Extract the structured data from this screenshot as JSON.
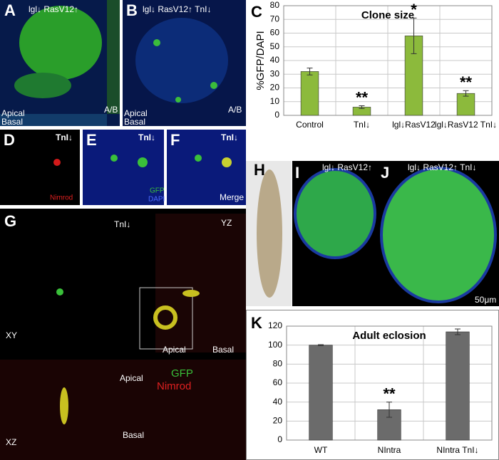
{
  "panels": {
    "A": {
      "label": "A",
      "title": "lgl↓ RasV12↑",
      "apical": "Apical",
      "basal": "Basal",
      "ab": "A/B"
    },
    "B": {
      "label": "B",
      "title": "lgl↓ RasV12↑ TnI↓",
      "apical": "Apical",
      "basal": "Basal",
      "ab": "A/B"
    },
    "C": {
      "label": "C"
    },
    "D": {
      "label": "D",
      "title": "TnI↓",
      "stain": "Nimrod"
    },
    "E": {
      "label": "E",
      "title": "TnI↓",
      "stain1": "GFP",
      "stain2": "DAPI"
    },
    "F": {
      "label": "F",
      "title": "TnI↓",
      "stain": "Merge"
    },
    "G": {
      "label": "G",
      "title": "TnI↓",
      "yz": "YZ",
      "xy": "XY",
      "apical_yz": "Apical",
      "basal_yz": "Basal",
      "apical_xz": "Apical",
      "gfp": "GFP",
      "nimrod": "Nimrod",
      "xz": "XZ",
      "basal_xz": "Basal"
    },
    "H": {
      "label": "H"
    },
    "I": {
      "label": "I",
      "title": "lgl↓ RasV12↑"
    },
    "J": {
      "label": "J",
      "title": "lgl↓ RasV12↑ TnI↓",
      "scale": "50μm"
    },
    "K": {
      "label": "K"
    }
  },
  "chart_data": [
    {
      "type": "bar",
      "title": "Clone size",
      "y_label": "%GFP/DAPI",
      "categories": [
        "Control",
        "TnI↓",
        "lgl↓RasV12",
        "lgl↓RasV12 TnI↓"
      ],
      "values": [
        32,
        6,
        58,
        16
      ],
      "errors": [
        2.5,
        1,
        13,
        2
      ],
      "significance": [
        null,
        "**",
        "*",
        "**"
      ],
      "color": "#8cba3c",
      "ylim": [
        0,
        80
      ],
      "yticks": [
        0,
        10,
        20,
        30,
        40,
        50,
        60,
        70,
        80
      ],
      "grid": true
    },
    {
      "type": "bar",
      "title": "Adult eclosion",
      "categories": [
        "WT",
        "NIntra",
        "NIntra TnI↓"
      ],
      "values": [
        100,
        32,
        114
      ],
      "errors": [
        0.5,
        8,
        3
      ],
      "significance": [
        null,
        "**",
        null
      ],
      "color": "#6b6b6b",
      "ylim": [
        0,
        120
      ],
      "yticks": [
        0,
        20,
        40,
        60,
        80,
        100,
        120
      ],
      "grid": true
    }
  ]
}
